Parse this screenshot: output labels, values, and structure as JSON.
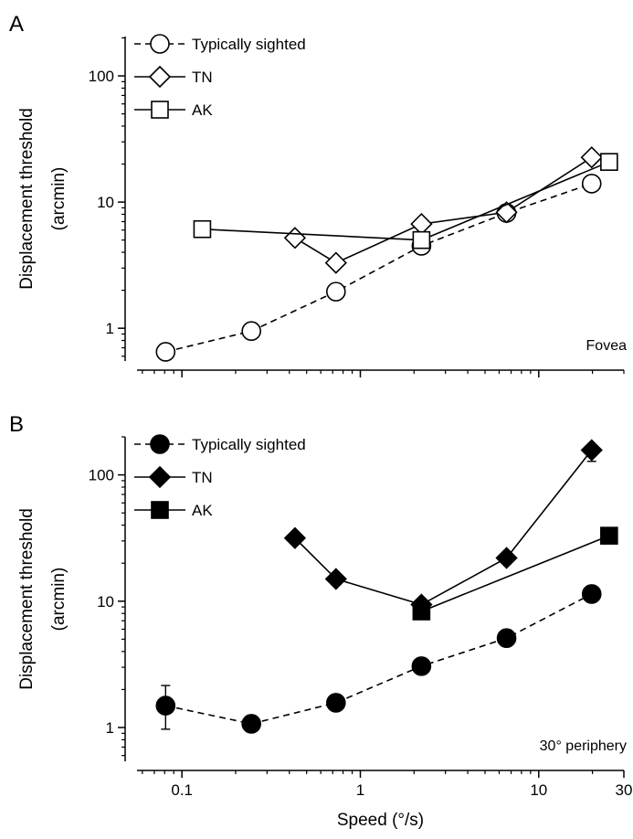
{
  "chart_data": [
    {
      "type": "line",
      "panel": "A",
      "annotation": "Fovea",
      "y_label": [
        "Displacement threshold",
        "(arcmin)"
      ],
      "xscale": "log",
      "yscale": "log",
      "xlim": [
        0.056,
        30
      ],
      "ylim": [
        0.55,
        205
      ],
      "xticks": [
        0.1,
        1,
        10
      ],
      "show_xtick_labels": false,
      "yticks": [
        1,
        10,
        100
      ],
      "x_minor_ticks": [
        0.06,
        0.07,
        0.08,
        0.09,
        0.2,
        0.3,
        0.4,
        0.5,
        0.6,
        0.7,
        0.8,
        0.9,
        2,
        3,
        4,
        5,
        6,
        7,
        8,
        9,
        20,
        30
      ],
      "y_minor_ticks": [
        0.6,
        0.7,
        0.8,
        0.9,
        2,
        3,
        4,
        5,
        6,
        7,
        8,
        9,
        20,
        30,
        40,
        50,
        60,
        70,
        80,
        90,
        200
      ],
      "legend": "upper left",
      "series": [
        {
          "name": "Typically sighted",
          "color": "#000000",
          "marker": "circle",
          "fill": "#ffffff",
          "dashed": true,
          "x": [
            0.081,
            0.245,
            0.73,
            2.2,
            6.6,
            19.8
          ],
          "values": [
            0.65,
            0.95,
            1.95,
            4.5,
            8.2,
            14
          ]
        },
        {
          "name": "TN",
          "color": "#000000",
          "marker": "diamond",
          "fill": "#ffffff",
          "dashed": false,
          "x": [
            0.43,
            0.73,
            2.2,
            6.6,
            19.8
          ],
          "values": [
            5.2,
            3.3,
            6.7,
            8.3,
            22.6
          ]
        },
        {
          "name": "AK",
          "color": "#000000",
          "marker": "square",
          "fill": "#ffffff",
          "dashed": false,
          "x": [
            0.13,
            2.2,
            24.8
          ],
          "values": [
            6.1,
            5,
            20.8
          ]
        }
      ]
    },
    {
      "type": "line",
      "panel": "B",
      "annotation": "30° periphery",
      "y_label": [
        "Displacement threshold",
        "(arcmin)"
      ],
      "x_label": "Speed (°/s)",
      "xscale": "log",
      "yscale": "log",
      "xlim": [
        0.056,
        30
      ],
      "ylim": [
        0.54,
        200
      ],
      "xticks": [
        0.1,
        1,
        10,
        30
      ],
      "show_xtick_labels": true,
      "yticks": [
        1,
        10,
        100
      ],
      "x_minor_ticks": [
        0.06,
        0.07,
        0.08,
        0.09,
        0.2,
        0.3,
        0.4,
        0.5,
        0.6,
        0.7,
        0.8,
        0.9,
        2,
        3,
        4,
        5,
        6,
        7,
        8,
        9,
        20
      ],
      "y_minor_ticks": [
        0.6,
        0.7,
        0.8,
        0.9,
        2,
        3,
        4,
        5,
        6,
        7,
        8,
        9,
        20,
        30,
        40,
        50,
        60,
        70,
        80,
        90,
        200
      ],
      "legend": "upper left",
      "series": [
        {
          "name": "Typically sighted",
          "color": "#000000",
          "marker": "circle",
          "fill": "#000000",
          "dashed": true,
          "x": [
            0.081,
            0.245,
            0.73,
            2.2,
            6.6,
            19.8
          ],
          "values": [
            1.49,
            1.07,
            1.57,
            3.06,
            5.1,
            11.4
          ],
          "error_lower": [
            0.52,
            null,
            null,
            null,
            null,
            null
          ],
          "error_upper": [
            0.66,
            null,
            null,
            null,
            null,
            null
          ]
        },
        {
          "name": "TN",
          "color": "#000000",
          "marker": "diamond",
          "fill": "#000000",
          "dashed": false,
          "x": [
            0.43,
            0.73,
            2.2,
            6.6,
            19.8
          ],
          "values": [
            31.6,
            15,
            9.4,
            22,
            157
          ],
          "error_lower": [
            null,
            null,
            null,
            null,
            29
          ],
          "error_upper": [
            null,
            null,
            null,
            null,
            null
          ]
        },
        {
          "name": "AK",
          "color": "#000000",
          "marker": "square",
          "fill": "#000000",
          "dashed": false,
          "x": [
            2.2,
            24.8
          ],
          "values": [
            8.3,
            33
          ]
        }
      ]
    }
  ]
}
